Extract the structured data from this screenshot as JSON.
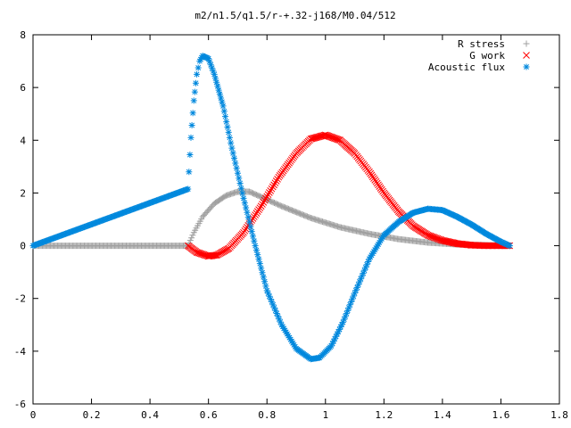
{
  "chart_data": {
    "type": "scatter",
    "title": "m2/n1.5/q1.5/r-+.32-j168/M0.04/512",
    "xlabel": "",
    "ylabel": "",
    "xlim": [
      0,
      1.8
    ],
    "ylim": [
      -6,
      8
    ],
    "xticks": [
      "0",
      "0.2",
      "0.4",
      "0.6",
      "0.8",
      "1",
      "1.2",
      "1.4",
      "1.6",
      "1.8"
    ],
    "yticks": [
      "8",
      "6",
      "4",
      "2",
      "0",
      "-2",
      "-4",
      "-6"
    ],
    "grid": false,
    "legend_position": "top-right",
    "series": [
      {
        "name": "R stress",
        "marker": "+",
        "color": "#a0a0a0",
        "x": [
          0.0,
          0.53,
          0.55,
          0.58,
          0.62,
          0.66,
          0.7,
          0.74,
          0.78,
          0.85,
          0.95,
          1.05,
          1.15,
          1.25,
          1.35,
          1.45,
          1.55,
          1.63
        ],
        "y": [
          0.0,
          0.0,
          0.5,
          1.1,
          1.6,
          1.9,
          2.05,
          2.05,
          1.85,
          1.5,
          1.05,
          0.7,
          0.45,
          0.25,
          0.12,
          0.05,
          0.02,
          0.0
        ]
      },
      {
        "name": "G work",
        "marker": "x",
        "color": "#ff0000",
        "x": [
          0.53,
          0.56,
          0.6,
          0.63,
          0.67,
          0.72,
          0.78,
          0.84,
          0.9,
          0.95,
          1.0,
          1.05,
          1.1,
          1.15,
          1.2,
          1.25,
          1.3,
          1.35,
          1.4,
          1.45,
          1.5,
          1.55,
          1.6,
          1.63
        ],
        "y": [
          0.0,
          -0.25,
          -0.4,
          -0.35,
          -0.1,
          0.5,
          1.5,
          2.6,
          3.5,
          4.05,
          4.2,
          4.0,
          3.5,
          2.8,
          2.0,
          1.3,
          0.75,
          0.4,
          0.2,
          0.08,
          0.02,
          0.0,
          0.0,
          0.0
        ]
      },
      {
        "name": "Acoustic flux",
        "marker": "*",
        "color": "#0088dd",
        "x": [
          0.0,
          0.53,
          0.54,
          0.55,
          0.56,
          0.57,
          0.58,
          0.6,
          0.62,
          0.65,
          0.68,
          0.72,
          0.76,
          0.8,
          0.85,
          0.9,
          0.95,
          0.98,
          1.02,
          1.06,
          1.1,
          1.15,
          1.2,
          1.25,
          1.3,
          1.35,
          1.4,
          1.45,
          1.5,
          1.55,
          1.6,
          1.63
        ],
        "y": [
          0.0,
          2.15,
          4.1,
          5.5,
          6.5,
          7.0,
          7.2,
          7.1,
          6.5,
          5.3,
          3.7,
          1.8,
          0.0,
          -1.7,
          -3.0,
          -3.9,
          -4.3,
          -4.25,
          -3.8,
          -2.9,
          -1.8,
          -0.5,
          0.4,
          0.9,
          1.25,
          1.4,
          1.35,
          1.1,
          0.8,
          0.45,
          0.15,
          0.0
        ]
      }
    ]
  }
}
